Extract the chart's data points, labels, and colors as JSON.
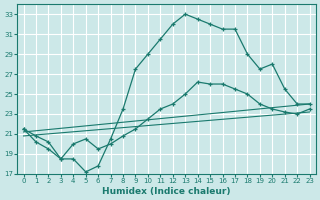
{
  "xlabel": "Humidex (Indice chaleur)",
  "bg_color": "#cce8e8",
  "grid_color": "#ffffff",
  "line_color": "#1a7a6e",
  "xlim": [
    -0.5,
    23.5
  ],
  "ylim": [
    17,
    34
  ],
  "yticks": [
    17,
    19,
    21,
    23,
    25,
    27,
    29,
    31,
    33
  ],
  "xticks": [
    0,
    1,
    2,
    3,
    4,
    5,
    6,
    7,
    8,
    9,
    10,
    11,
    12,
    13,
    14,
    15,
    16,
    17,
    18,
    19,
    20,
    21,
    22,
    23
  ],
  "line1_x": [
    0,
    1,
    2,
    3,
    4,
    5,
    6,
    7,
    8,
    9,
    10,
    11,
    12,
    13,
    14,
    15,
    16,
    17,
    18,
    19,
    20,
    21,
    22,
    23
  ],
  "line1_y": [
    21.5,
    20.2,
    19.5,
    18.5,
    18.5,
    17.2,
    17.8,
    20.5,
    23.5,
    27.5,
    29.0,
    30.5,
    32.0,
    33.0,
    32.5,
    32.0,
    31.5,
    31.5,
    29.0,
    27.5,
    28.0,
    25.5,
    24.0,
    24.0
  ],
  "line2_x": [
    0,
    1,
    2,
    3,
    4,
    5,
    6,
    7,
    8,
    9,
    10,
    11,
    12,
    13,
    14,
    15,
    16,
    17,
    18,
    19,
    20,
    21,
    22,
    23
  ],
  "line2_y": [
    21.5,
    20.8,
    20.2,
    18.5,
    20.0,
    20.5,
    19.5,
    20.0,
    20.8,
    21.5,
    22.5,
    23.5,
    24.0,
    25.0,
    26.2,
    26.0,
    26.0,
    25.5,
    25.0,
    24.0,
    23.5,
    23.2,
    23.0,
    23.5
  ],
  "line3_x": [
    0,
    23
  ],
  "line3_y": [
    21.2,
    24.0
  ],
  "line4_x": [
    0,
    23
  ],
  "line4_y": [
    20.8,
    23.2
  ]
}
